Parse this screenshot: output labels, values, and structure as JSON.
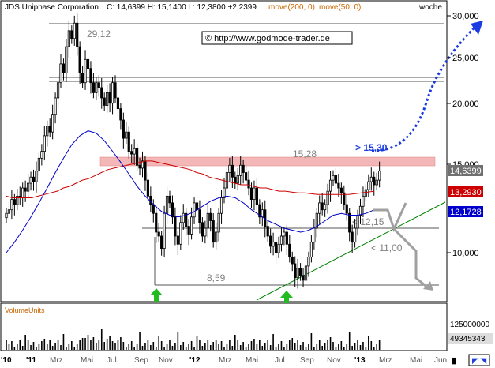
{
  "header": {
    "title": "JDS Uniphase Corporation",
    "quote": "C: 14,6399 H: 15,1400 L: 12,3800 +2,2399",
    "ma_labels": [
      "move(200, 0)",
      "move(50, 0)"
    ],
    "period": "woche"
  },
  "watermark": "© http://www.godmode-trader.de",
  "volume_label": "VolumeUnits",
  "annotations": {
    "high_2011": "29,12",
    "resistance": "15,28",
    "low_2011": "8,59",
    "target": "> 15,30",
    "support_1": "< 12,15",
    "support_2": "< 11,00"
  },
  "price_badges": {
    "close": "14,6399",
    "ma200": "13,2930",
    "ma50": "12,1728"
  },
  "colors": {
    "close_badge": "#707070",
    "ma200": "#cc0000",
    "ma50": "#0000cc",
    "resistance_zone": "#f3b7b7",
    "trendline": "#008000",
    "arrow_blue": "#1a3ce0",
    "arrow_gray": "#a0a0a0",
    "arrow_green": "#22bb22"
  },
  "chart_data": {
    "type": "candlestick",
    "title": "JDS Uniphase Corporation",
    "interval": "woche",
    "x_axis_labels": [
      "'10",
      "'11",
      "Mrz",
      "Mai",
      "Jul",
      "Sep",
      "Nov",
      "'12",
      "Mrz",
      "Mai",
      "Jul",
      "Sep",
      "Nov",
      "'13",
      "Mrz",
      "Mai",
      "Jun"
    ],
    "y_axis": {
      "scale": "log",
      "ticks": [
        10000,
        15000,
        20000,
        25000,
        30000
      ],
      "tick_labels": [
        "10,000",
        "15,000",
        "20,000",
        "25,000",
        "30,000"
      ]
    },
    "volume_axis": {
      "ticks": [
        "125000000",
        "49345343"
      ]
    },
    "last": {
      "close": 14.6399,
      "high": 15.14,
      "low": 12.38,
      "change": 2.2399
    },
    "levels": {
      "high_2011": 29.12,
      "resistance": 15.28,
      "low_2011": 8.59,
      "support_1": 12.15,
      "support_2": 11.0,
      "target": 15.3
    },
    "moving_averages": [
      {
        "name": "move(200, 0)",
        "last": 13.293
      },
      {
        "name": "move(50, 0)",
        "last": 12.1728
      }
    ],
    "closes": [
      12.0,
      12.2,
      12.8,
      12.5,
      13.0,
      12.9,
      13.5,
      13.3,
      13.8,
      14.2,
      13.9,
      14.6,
      15.5,
      16.0,
      17.2,
      18.0,
      17.5,
      19.0,
      20.5,
      22.0,
      24.0,
      23.0,
      26.0,
      28.0,
      27.0,
      29.0,
      26.0,
      23.0,
      22.0,
      24.5,
      23.5,
      22.0,
      21.0,
      22.0,
      21.5,
      20.5,
      19.8,
      21.0,
      20.0,
      22.0,
      20.5,
      19.5,
      18.5,
      17.0,
      17.5,
      16.0,
      15.8,
      16.2,
      15.0,
      14.8,
      15.3,
      14.0,
      13.0,
      12.5,
      12.0,
      11.0,
      10.8,
      10.2,
      12.0,
      13.0,
      12.6,
      11.8,
      10.8,
      10.4,
      11.5,
      12.0,
      11.3,
      10.9,
      11.8,
      12.6,
      12.2,
      11.5,
      10.8,
      11.2,
      12.0,
      11.6,
      10.5,
      11.0,
      12.0,
      12.9,
      13.5,
      14.5,
      15.0,
      14.2,
      13.8,
      14.3,
      15.0,
      14.5,
      14.0,
      13.5,
      12.8,
      13.5,
      12.5,
      11.8,
      12.2,
      11.3,
      10.8,
      10.3,
      10.5,
      10.0,
      10.4,
      10.8,
      11.0,
      10.4,
      9.8,
      9.5,
      8.9,
      9.3,
      9.0,
      8.8,
      9.4,
      9.8,
      10.5,
      11.2,
      12.0,
      12.6,
      12.2,
      12.5,
      13.3,
      14.0,
      14.3,
      13.8,
      13.5,
      13.2,
      12.5,
      12.0,
      11.0,
      10.5,
      11.2,
      11.9,
      12.4,
      13.0,
      13.4,
      13.9,
      14.2,
      13.7,
      14.0,
      14.6
    ],
    "ma200": [
      13.0,
      12.9,
      12.9,
      12.9,
      12.9,
      13.0,
      13.1,
      13.2,
      13.3,
      13.5,
      13.6,
      13.8,
      14.0,
      14.1,
      14.3,
      14.5,
      14.7,
      14.8,
      14.9,
      15.0,
      15.1,
      15.2,
      15.3,
      15.3,
      15.2,
      15.1,
      15.0,
      14.9,
      14.8,
      14.7,
      14.5,
      14.4,
      14.2,
      14.1,
      14.0,
      13.9,
      13.8,
      13.7,
      13.7,
      13.6,
      13.5,
      13.5,
      13.4,
      13.3,
      13.3,
      13.25,
      13.2,
      13.2,
      13.15,
      13.1,
      13.1,
      13.1,
      13.1,
      13.1,
      13.1,
      13.15,
      13.2,
      13.25,
      13.3
    ],
    "ma50": [
      10.0,
      10.5,
      11.1,
      11.8,
      12.6,
      13.5,
      14.5,
      15.5,
      16.5,
      17.2,
      17.6,
      17.4,
      16.8,
      16.0,
      15.2,
      14.4,
      13.6,
      13.0,
      12.5,
      12.1,
      11.9,
      11.8,
      11.9,
      12.1,
      12.4,
      12.7,
      12.9,
      13.0,
      12.9,
      12.6,
      12.2,
      11.9,
      11.6,
      11.4,
      11.2,
      11.1,
      11.0,
      11.1,
      11.3,
      11.6,
      11.9,
      12.0,
      11.9,
      11.9,
      12.0,
      12.2
    ]
  }
}
